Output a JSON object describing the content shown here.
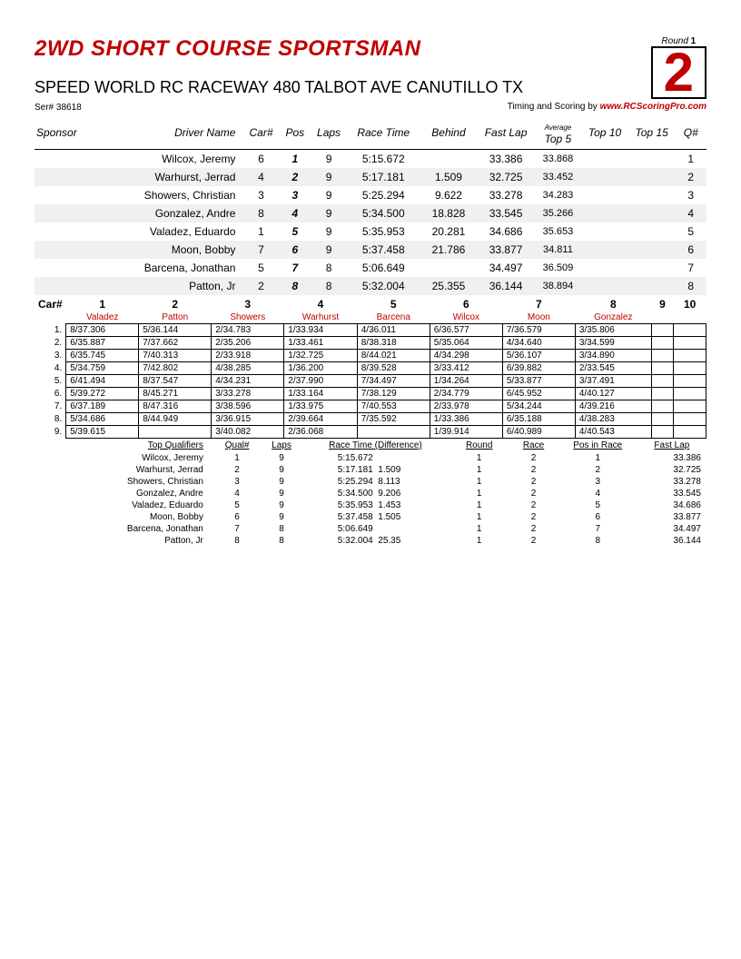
{
  "header": {
    "title": "2WD SHORT COURSE SPORTSMAN",
    "round_label": "Round",
    "round_num": "1",
    "round_big": "2",
    "venue": "SPEED WORLD RC RACEWAY 480 TALBOT AVE CANUTILLO TX",
    "ser_label": "Ser#",
    "ser_num": "38618",
    "timing_label": "Timing and Scoring by",
    "timing_site": "www.RCScoringPro.com"
  },
  "results": {
    "cols": {
      "sponsor": "Sponsor",
      "driver": "Driver Name",
      "car": "Car#",
      "pos": "Pos",
      "laps": "Laps",
      "rt": "Race Time",
      "behind": "Behind",
      "fl": "Fast Lap",
      "avg": "Average",
      "t5": "Top 5",
      "t10": "Top 10",
      "t15": "Top 15",
      "q": "Q#"
    },
    "rows": [
      {
        "driver": "Wilcox, Jeremy",
        "car": "6",
        "pos": "1",
        "laps": "9",
        "rt": "5:15.672",
        "behind": "",
        "fl": "33.386",
        "t5": "33.868",
        "t10": "",
        "t15": "",
        "q": "1"
      },
      {
        "driver": "Warhurst, Jerrad",
        "car": "4",
        "pos": "2",
        "laps": "9",
        "rt": "5:17.181",
        "behind": "1.509",
        "fl": "32.725",
        "t5": "33.452",
        "t10": "",
        "t15": "",
        "q": "2"
      },
      {
        "driver": "Showers, Christian",
        "car": "3",
        "pos": "3",
        "laps": "9",
        "rt": "5:25.294",
        "behind": "9.622",
        "fl": "33.278",
        "t5": "34.283",
        "t10": "",
        "t15": "",
        "q": "3"
      },
      {
        "driver": "Gonzalez, Andre",
        "car": "8",
        "pos": "4",
        "laps": "9",
        "rt": "5:34.500",
        "behind": "18.828",
        "fl": "33.545",
        "t5": "35.266",
        "t10": "",
        "t15": "",
        "q": "4"
      },
      {
        "driver": "Valadez, Eduardo",
        "car": "1",
        "pos": "5",
        "laps": "9",
        "rt": "5:35.953",
        "behind": "20.281",
        "fl": "34.686",
        "t5": "35.653",
        "t10": "",
        "t15": "",
        "q": "5"
      },
      {
        "driver": "Moon, Bobby",
        "car": "7",
        "pos": "6",
        "laps": "9",
        "rt": "5:37.458",
        "behind": "21.786",
        "fl": "33.877",
        "t5": "34.811",
        "t10": "",
        "t15": "",
        "q": "6"
      },
      {
        "driver": "Barcena, Jonathan",
        "car": "5",
        "pos": "7",
        "laps": "8",
        "rt": "5:06.649",
        "behind": "",
        "fl": "34.497",
        "t5": "36.509",
        "t10": "",
        "t15": "",
        "q": "7"
      },
      {
        "driver": "Patton, Jr",
        "car": "2",
        "pos": "8",
        "laps": "8",
        "rt": "5:32.004",
        "behind": "25.355",
        "fl": "36.144",
        "t5": "38.894",
        "t10": "",
        "t15": "",
        "q": "8"
      }
    ]
  },
  "laps": {
    "car_label": "Car#",
    "cars": [
      "1",
      "2",
      "3",
      "4",
      "5",
      "6",
      "7",
      "8",
      "9",
      "10"
    ],
    "drivers": [
      "Valadez",
      "Patton",
      "Showers",
      "Warhurst",
      "Barcena",
      "Wilcox",
      "Moon",
      "Gonzalez",
      "",
      ""
    ],
    "rows": [
      [
        "1.",
        "8/37.306",
        "5/36.144",
        "2/34.783",
        "1/33.934",
        "4/36.011",
        "6/36.577",
        "7/36.579",
        "3/35.806",
        "",
        ""
      ],
      [
        "2.",
        "6/35.887",
        "7/37.662",
        "2/35.206",
        "1/33.461",
        "8/38.318",
        "5/35.064",
        "4/34.640",
        "3/34.599",
        "",
        ""
      ],
      [
        "3.",
        "6/35.745",
        "7/40.313",
        "2/33.918",
        "1/32.725",
        "8/44.021",
        "4/34.298",
        "5/36.107",
        "3/34.890",
        "",
        ""
      ],
      [
        "4.",
        "5/34.759",
        "7/42.802",
        "4/38.285",
        "1/36.200",
        "8/39.528",
        "3/33.412",
        "6/39.882",
        "2/33.545",
        "",
        ""
      ],
      [
        "5.",
        "6/41.494",
        "8/37.547",
        "4/34.231",
        "2/37.990",
        "7/34.497",
        "1/34.264",
        "5/33.877",
        "3/37.491",
        "",
        ""
      ],
      [
        "6.",
        "5/39.272",
        "8/45.271",
        "3/33.278",
        "1/33.164",
        "7/38.129",
        "2/34.779",
        "6/45.952",
        "4/40.127",
        "",
        ""
      ],
      [
        "7.",
        "6/37.189",
        "8/47.316",
        "3/38.596",
        "1/33.975",
        "7/40.553",
        "2/33.978",
        "5/34.244",
        "4/39.216",
        "",
        ""
      ],
      [
        "8.",
        "5/34.686",
        "8/44.949",
        "3/36.915",
        "2/39.664",
        "7/35.592",
        "1/33.386",
        "6/35.188",
        "4/38.283",
        "",
        ""
      ],
      [
        "9.",
        "5/39.615",
        "",
        "3/40.082",
        "2/36.068",
        "",
        "1/39.914",
        "6/40.989",
        "4/40.543",
        "",
        ""
      ]
    ]
  },
  "tq": {
    "cols": {
      "tq": "Top Qualifiers",
      "q": "Qual#",
      "laps": "Laps",
      "rt": "Race Time (Difference)",
      "round": "Round",
      "race": "Race",
      "pir": "Pos in Race",
      "fl": "Fast Lap"
    },
    "rows": [
      {
        "n": "Wilcox, Jeremy",
        "q": "1",
        "laps": "9",
        "rt": "5:15.672",
        "diff": "",
        "round": "1",
        "race": "2",
        "pir": "1",
        "fl": "33.386"
      },
      {
        "n": "Warhurst, Jerrad",
        "q": "2",
        "laps": "9",
        "rt": "5:17.181",
        "diff": "1.509",
        "round": "1",
        "race": "2",
        "pir": "2",
        "fl": "32.725"
      },
      {
        "n": "Showers, Christian",
        "q": "3",
        "laps": "9",
        "rt": "5:25.294",
        "diff": "8.113",
        "round": "1",
        "race": "2",
        "pir": "3",
        "fl": "33.278"
      },
      {
        "n": "Gonzalez, Andre",
        "q": "4",
        "laps": "9",
        "rt": "5:34.500",
        "diff": "9.206",
        "round": "1",
        "race": "2",
        "pir": "4",
        "fl": "33.545"
      },
      {
        "n": "Valadez, Eduardo",
        "q": "5",
        "laps": "9",
        "rt": "5:35.953",
        "diff": "1.453",
        "round": "1",
        "race": "2",
        "pir": "5",
        "fl": "34.686"
      },
      {
        "n": "Moon, Bobby",
        "q": "6",
        "laps": "9",
        "rt": "5:37.458",
        "diff": "1.505",
        "round": "1",
        "race": "2",
        "pir": "6",
        "fl": "33.877"
      },
      {
        "n": "Barcena, Jonathan",
        "q": "7",
        "laps": "8",
        "rt": "5:06.649",
        "diff": "",
        "round": "1",
        "race": "2",
        "pir": "7",
        "fl": "34.497"
      },
      {
        "n": "Patton, Jr",
        "q": "8",
        "laps": "8",
        "rt": "5:32.004",
        "diff": "25.35",
        "round": "1",
        "race": "2",
        "pir": "8",
        "fl": "36.144"
      }
    ]
  }
}
